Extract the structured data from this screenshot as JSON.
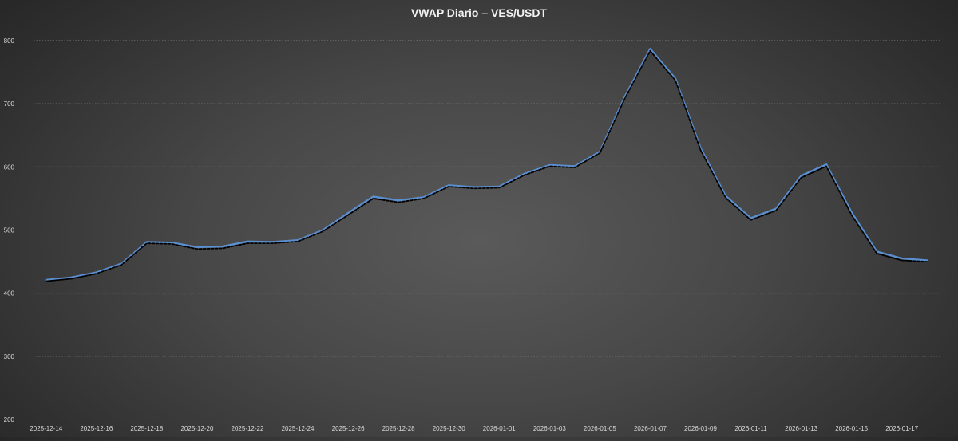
{
  "chart_data": {
    "type": "line",
    "title": "VWAP Diario – VES/USDT",
    "xlabel": "",
    "ylabel": "",
    "ylim": [
      200,
      800
    ],
    "yticks": [
      200,
      300,
      400,
      500,
      600,
      700,
      800
    ],
    "grid": true,
    "legend": "none",
    "x": [
      "2025-12-14",
      "2025-12-15",
      "2025-12-16",
      "2025-12-17",
      "2025-12-18",
      "2025-12-19",
      "2025-12-20",
      "2025-12-21",
      "2025-12-22",
      "2025-12-23",
      "2025-12-24",
      "2025-12-25",
      "2025-12-26",
      "2025-12-27",
      "2025-12-28",
      "2025-12-29",
      "2025-12-30",
      "2025-12-31",
      "2026-01-01",
      "2026-01-02",
      "2026-01-03",
      "2026-01-04",
      "2026-01-05",
      "2026-01-06",
      "2026-01-07",
      "2026-01-08",
      "2026-01-09",
      "2026-01-10",
      "2026-01-11",
      "2026-01-12",
      "2026-01-13",
      "2026-01-14",
      "2026-01-15",
      "2026-01-16",
      "2026-01-17",
      "2026-01-18"
    ],
    "xtick_labels": [
      "2025-12-14",
      "2025-12-16",
      "2025-12-18",
      "2025-12-20",
      "2025-12-22",
      "2025-12-24",
      "2025-12-26",
      "2025-12-28",
      "2025-12-30",
      "2026-01-01",
      "2026-01-03",
      "2026-01-05",
      "2026-01-07",
      "2026-01-09",
      "2026-01-11",
      "2026-01-13",
      "2026-01-15",
      "2026-01-17"
    ],
    "series": [
      {
        "color": "#5b8fd0",
        "style": "solid",
        "values": [
          421,
          425,
          433,
          447,
          481,
          480,
          473,
          474,
          482,
          481,
          484,
          500,
          527,
          553,
          547,
          552,
          571,
          568,
          569,
          589,
          603,
          601,
          624,
          712,
          787,
          740,
          630,
          554,
          519,
          534,
          586,
          604,
          528,
          466,
          455,
          452
        ]
      },
      {
        "color": "#000000",
        "style": "dashed",
        "values": [
          419,
          423,
          431,
          445,
          479,
          478,
          470,
          471,
          479,
          479,
          482,
          498,
          524,
          550,
          544,
          550,
          569,
          566,
          567,
          587,
          601,
          599,
          622,
          709,
          784,
          737,
          627,
          551,
          516,
          531,
          583,
          601,
          524,
          463,
          452,
          450
        ]
      }
    ]
  }
}
